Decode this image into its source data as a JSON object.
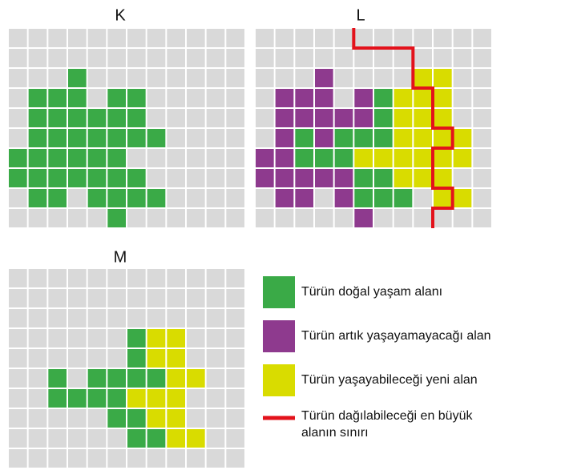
{
  "panels": [
    {
      "label": "K"
    },
    {
      "label": "L"
    },
    {
      "label": "M"
    }
  ],
  "legend": [
    {
      "label": "Türün doğal yaşam alanı"
    },
    {
      "label": "Türün artık yaşayamayacağı alan"
    },
    {
      "label": "Türün yaşayabileceği yeni alan"
    },
    {
      "label": "Türün dağılabileceği en büyük",
      "label2": "alanın sınırı"
    }
  ]
}
